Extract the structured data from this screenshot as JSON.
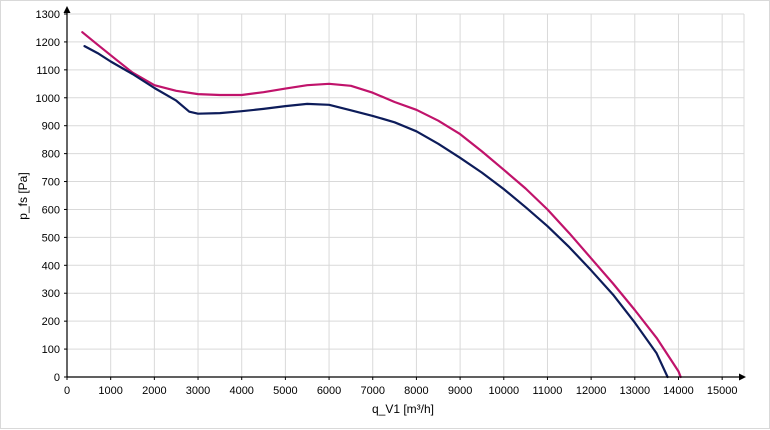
{
  "chart_data": {
    "type": "line",
    "title": "",
    "xlabel": "q_V1 [m³/h]",
    "ylabel": "p_fs [Pa]",
    "xlim": [
      0,
      15500
    ],
    "ylim": [
      0,
      1300
    ],
    "x_ticks": [
      0,
      1000,
      2000,
      3000,
      4000,
      5000,
      6000,
      7000,
      8000,
      9000,
      10000,
      11000,
      12000,
      13000,
      14000,
      15000
    ],
    "y_ticks": [
      0,
      100,
      200,
      300,
      400,
      500,
      600,
      700,
      800,
      900,
      1000,
      1100,
      1200,
      1300
    ],
    "grid": true,
    "legend": "none",
    "series": [
      {
        "color": "#c0136b",
        "points": [
          [
            350,
            1235
          ],
          [
            700,
            1190
          ],
          [
            1100,
            1140
          ],
          [
            1500,
            1090
          ],
          [
            2000,
            1045
          ],
          [
            2500,
            1025
          ],
          [
            3000,
            1013
          ],
          [
            3500,
            1010
          ],
          [
            4000,
            1010
          ],
          [
            4500,
            1020
          ],
          [
            5000,
            1033
          ],
          [
            5500,
            1045
          ],
          [
            6000,
            1050
          ],
          [
            6500,
            1043
          ],
          [
            7000,
            1018
          ],
          [
            7500,
            985
          ],
          [
            8000,
            957
          ],
          [
            8500,
            918
          ],
          [
            9000,
            870
          ],
          [
            9500,
            808
          ],
          [
            10000,
            742
          ],
          [
            10500,
            675
          ],
          [
            11000,
            600
          ],
          [
            11500,
            515
          ],
          [
            12000,
            425
          ],
          [
            12500,
            335
          ],
          [
            13000,
            240
          ],
          [
            13500,
            140
          ],
          [
            14000,
            20
          ],
          [
            14050,
            0
          ]
        ]
      },
      {
        "color": "#0d1c5a",
        "points": [
          [
            400,
            1185
          ],
          [
            700,
            1160
          ],
          [
            1000,
            1130
          ],
          [
            1500,
            1085
          ],
          [
            2000,
            1035
          ],
          [
            2500,
            990
          ],
          [
            2800,
            950
          ],
          [
            3000,
            943
          ],
          [
            3500,
            945
          ],
          [
            4000,
            952
          ],
          [
            4500,
            960
          ],
          [
            5000,
            970
          ],
          [
            5500,
            978
          ],
          [
            6000,
            975
          ],
          [
            6500,
            955
          ],
          [
            7000,
            935
          ],
          [
            7500,
            912
          ],
          [
            8000,
            880
          ],
          [
            8500,
            835
          ],
          [
            9000,
            785
          ],
          [
            9500,
            732
          ],
          [
            10000,
            673
          ],
          [
            10500,
            608
          ],
          [
            11000,
            540
          ],
          [
            11500,
            465
          ],
          [
            12000,
            382
          ],
          [
            12500,
            295
          ],
          [
            13000,
            195
          ],
          [
            13500,
            85
          ],
          [
            13750,
            0
          ]
        ]
      }
    ]
  }
}
